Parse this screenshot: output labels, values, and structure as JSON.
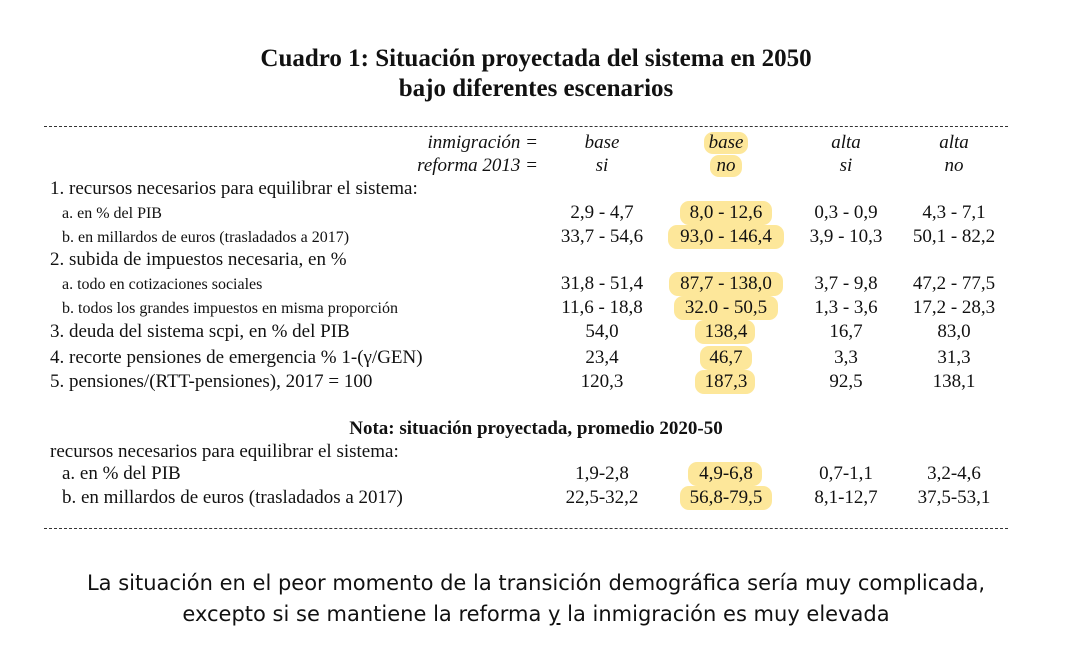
{
  "title_line1": "Cuadro 1: Situación proyectada del sistema en 2050",
  "title_line2": "bajo diferentes escenarios",
  "header": {
    "immigration_label": "inmigración =",
    "reform_label": "reforma 2013 =",
    "columns": [
      {
        "immigration": "base",
        "reform": "si"
      },
      {
        "immigration": "base",
        "reform": "no"
      },
      {
        "immigration": "alta",
        "reform": "si"
      },
      {
        "immigration": "alta",
        "reform": "no"
      }
    ]
  },
  "highlight_color": "#fde79a",
  "rows": [
    {
      "label": "1. recursos necesarios para equilibrar el sistema:",
      "values": [
        "",
        "",
        "",
        ""
      ]
    },
    {
      "label": "a. en % del PIB",
      "values": [
        "2,9 - 4,7",
        "8,0 - 12,6",
        "0,3 - 0,9",
        "4,3 - 7,1"
      ]
    },
    {
      "label": "b. en millardos de euros (trasladados a 2017)",
      "values": [
        "33,7 - 54,6",
        "93,0 - 146,4",
        "3,9 - 10,3",
        "50,1 - 82,2"
      ]
    },
    {
      "label": "2. subida de impuestos necesaria, en %",
      "values": [
        "",
        "",
        "",
        ""
      ]
    },
    {
      "label": "a. todo en cotizaciones sociales",
      "values": [
        "31,8 - 51,4",
        "87,7 - 138,0",
        "3,7 - 9,8",
        "47,2 - 77,5"
      ]
    },
    {
      "label": "b. todos los grandes impuestos en misma proporción",
      "values": [
        "11,6 - 18,8",
        "32.0 - 50,5",
        "1,3 - 3,6",
        "17,2 - 28,3"
      ]
    },
    {
      "label": "3. deuda del sistema scpi, en % del PIB",
      "values": [
        "54,0",
        "138,4",
        "16,7",
        "83,0"
      ]
    },
    {
      "label": "4. recorte pensiones de emergencia % 1-(γ/GEN)",
      "values": [
        "23,4",
        "46,7",
        "3,3",
        "31,3"
      ]
    },
    {
      "label": "5. pensiones/(RTT-pensiones), 2017 = 100",
      "values": [
        "120,3",
        "187,3",
        "92,5",
        "138,1"
      ]
    }
  ],
  "note": {
    "title": "Nota: situación proyectada, promedio 2020-50",
    "subtitle": "recursos necesarios para equilibrar el sistema:",
    "rows": [
      {
        "label": "a. en % del PIB",
        "values": [
          "1,9-2,8",
          "4,9-6,8",
          "0,7-1,1",
          "3,2-4,6"
        ]
      },
      {
        "label": "b. en millardos de euros (trasladados a 2017)",
        "values": [
          "22,5-32,2",
          "56,8-79,5",
          "8,1-12,7",
          "37,5-53,1"
        ]
      }
    ]
  },
  "footer": {
    "line1": "La situación en el peor momento de la transición demográfica sería muy complicada,",
    "line2_before": "excepto si se mantiene la reforma ",
    "line2_underlined": "y",
    "line2_after": " la inmigración es muy elevada"
  }
}
